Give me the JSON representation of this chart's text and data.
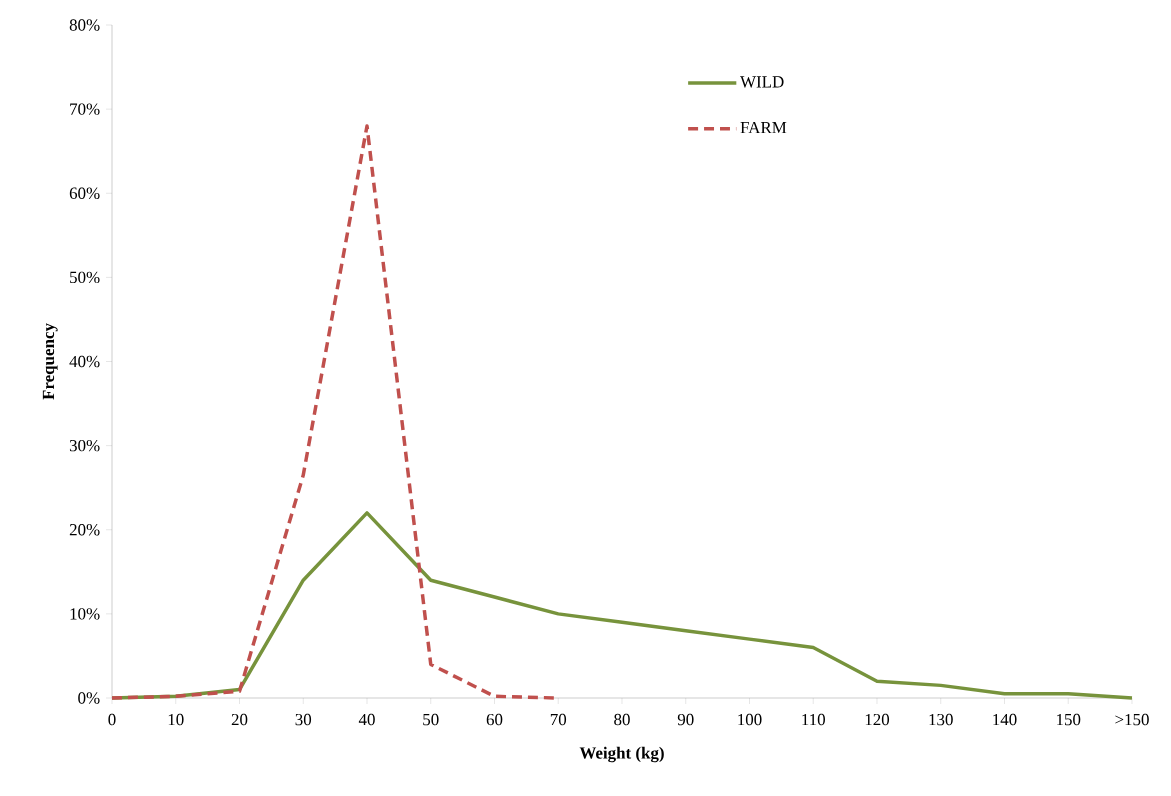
{
  "chart_data": {
    "type": "line",
    "xlabel": "Weight (kg)",
    "ylabel": "Frequency",
    "categories": [
      "0",
      "10",
      "20",
      "30",
      "40",
      "50",
      "60",
      "70",
      "80",
      "90",
      "100",
      "110",
      "120",
      "130",
      "140",
      "150",
      ">150"
    ],
    "series": [
      {
        "name": "WILD",
        "color": "#77933c",
        "line_style": "solid",
        "values": [
          0,
          0.2,
          1,
          14,
          22,
          14,
          12,
          10,
          9,
          8,
          7,
          6,
          2,
          1.5,
          0.5,
          0.5,
          0
        ]
      },
      {
        "name": "FARM",
        "color": "#c0504d",
        "line_style": "dashed",
        "values": [
          0,
          0.2,
          0.8,
          26.5,
          68,
          4,
          0.2,
          0,
          null,
          null,
          null,
          null,
          null,
          null,
          null,
          null,
          null
        ]
      }
    ],
    "ylim": [
      0,
      80
    ],
    "yticks": [
      {
        "value": 0,
        "label": "0%"
      },
      {
        "value": 10,
        "label": "10%"
      },
      {
        "value": 20,
        "label": "20%"
      },
      {
        "value": 30,
        "label": "30%"
      },
      {
        "value": 40,
        "label": "40%"
      },
      {
        "value": 50,
        "label": "50%"
      },
      {
        "value": 60,
        "label": "60%"
      },
      {
        "value": 70,
        "label": "70%"
      },
      {
        "value": 80,
        "label": "80%"
      }
    ],
    "legend": "top right",
    "grid": false,
    "marker": "none"
  }
}
